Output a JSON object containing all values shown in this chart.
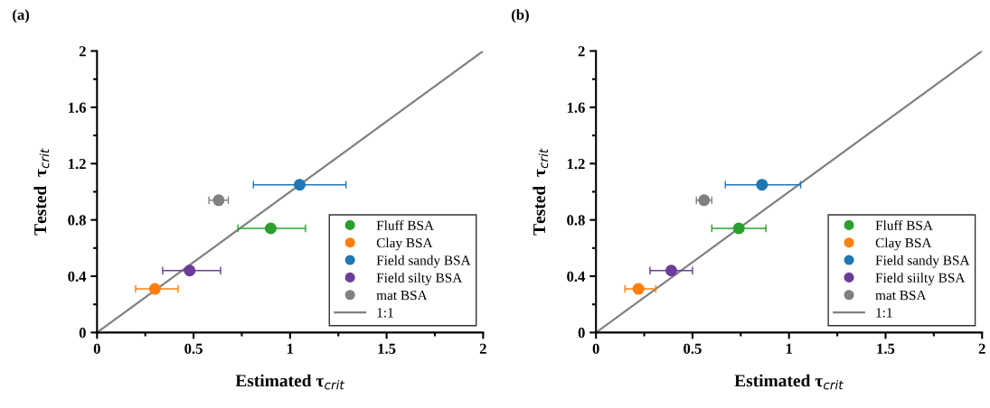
{
  "chart_data": [
    {
      "type": "scatter",
      "title": "(a)",
      "xlabel": "Estimated τ$_{crit}$",
      "ylabel": "Tested  τ$_{crit}$",
      "xlim": [
        0,
        2
      ],
      "ylim": [
        0,
        2
      ],
      "xticks": [
        0,
        0.5,
        1,
        1.5,
        2
      ],
      "yticks": [
        0,
        0.4,
        0.8,
        1.2,
        1.6,
        2
      ],
      "grid": false,
      "legend": "bottom right",
      "series": [
        {
          "name": "Fluff BSA",
          "color": "#2ca02c",
          "x": [
            0.9
          ],
          "values": [
            0.74
          ],
          "xerrors": [
            [
              0.73,
              1.08
            ]
          ]
        },
        {
          "name": "Clay BSA",
          "color": "#ff7f0e",
          "x": [
            0.3
          ],
          "values": [
            0.31
          ],
          "xerrors": [
            [
              0.2,
              0.42
            ]
          ]
        },
        {
          "name": "Field sandy BSA",
          "color": "#1f77b4",
          "x": [
            1.05
          ],
          "values": [
            1.05
          ],
          "xerrors": [
            [
              0.81,
              1.29
            ]
          ]
        },
        {
          "name": "Field silty BSA",
          "color": "#6a3d9a",
          "x": [
            0.48
          ],
          "values": [
            0.44
          ],
          "xerrors": [
            [
              0.34,
              0.64
            ]
          ]
        },
        {
          "name": "mat BSA",
          "color": "#808080",
          "x": [
            0.63
          ],
          "values": [
            0.94
          ],
          "xerrors": [
            [
              0.58,
              0.68
            ]
          ]
        },
        {
          "name": "1:1",
          "type": "line",
          "color": "#808080",
          "x": [
            0,
            2
          ],
          "values": [
            0,
            2
          ]
        }
      ]
    },
    {
      "type": "scatter",
      "title": "(b)",
      "xlabel": "Estimated τ$_{crit}$",
      "ylabel": "Tested  τ$_{crit}$",
      "xlim": [
        0,
        2
      ],
      "ylim": [
        0,
        2
      ],
      "xticks": [
        0,
        0.5,
        1,
        1.5,
        2
      ],
      "yticks": [
        0,
        0.4,
        0.8,
        1.2,
        1.6,
        2
      ],
      "grid": false,
      "legend": "bottom right",
      "series": [
        {
          "name": "Fluff BSA",
          "color": "#2ca02c",
          "x": [
            0.74
          ],
          "values": [
            0.74
          ],
          "xerrors": [
            [
              0.6,
              0.88
            ]
          ]
        },
        {
          "name": "Clay BSA",
          "color": "#ff7f0e",
          "x": [
            0.22
          ],
          "values": [
            0.31
          ],
          "xerrors": [
            [
              0.15,
              0.31
            ]
          ]
        },
        {
          "name": "Field sandy BSA",
          "color": "#1f77b4",
          "x": [
            0.86
          ],
          "values": [
            1.05
          ],
          "xerrors": [
            [
              0.67,
              1.06
            ]
          ]
        },
        {
          "name": "Field siilty BSA",
          "color": "#6a3d9a",
          "x": [
            0.39
          ],
          "values": [
            0.44
          ],
          "xerrors": [
            [
              0.28,
              0.5
            ]
          ]
        },
        {
          "name": "mat BSA",
          "color": "#808080",
          "x": [
            0.56
          ],
          "values": [
            0.94
          ],
          "xerrors": [
            [
              0.52,
              0.6
            ]
          ]
        },
        {
          "name": "1:1",
          "type": "line",
          "color": "#808080",
          "x": [
            0,
            2
          ],
          "values": [
            0,
            2
          ]
        }
      ]
    }
  ]
}
